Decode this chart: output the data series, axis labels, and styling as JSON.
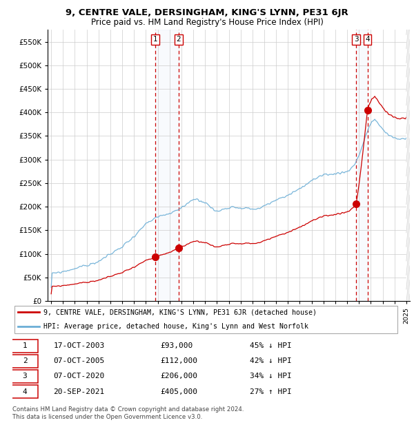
{
  "title": "9, CENTRE VALE, DERSINGHAM, KING'S LYNN, PE31 6JR",
  "subtitle": "Price paid vs. HM Land Registry's House Price Index (HPI)",
  "ylim": [
    0,
    575000
  ],
  "yticks": [
    0,
    50000,
    100000,
    150000,
    200000,
    250000,
    300000,
    350000,
    400000,
    450000,
    500000,
    550000
  ],
  "xlim_start": 1994.7,
  "xlim_end": 2025.3,
  "legend_line1": "9, CENTRE VALE, DERSINGHAM, KING'S LYNN, PE31 6JR (detached house)",
  "legend_line2": "HPI: Average price, detached house, King's Lynn and West Norfolk",
  "sale_color": "#cc0000",
  "hpi_color": "#6baed6",
  "transactions": [
    {
      "num": 1,
      "date_str": "17-OCT-2003",
      "date_x": 2003.79,
      "price": 93000,
      "pct": "45%",
      "dir": "↓"
    },
    {
      "num": 2,
      "date_str": "07-OCT-2005",
      "date_x": 2005.77,
      "price": 112000,
      "pct": "42%",
      "dir": "↓"
    },
    {
      "num": 3,
      "date_str": "07-OCT-2020",
      "date_x": 2020.77,
      "price": 206000,
      "pct": "34%",
      "dir": "↓"
    },
    {
      "num": 4,
      "date_str": "20-SEP-2021",
      "date_x": 2021.72,
      "price": 405000,
      "pct": "27%",
      "dir": "↑"
    }
  ],
  "footer1": "Contains HM Land Registry data © Crown copyright and database right 2024.",
  "footer2": "This data is licensed under the Open Government Licence v3.0."
}
